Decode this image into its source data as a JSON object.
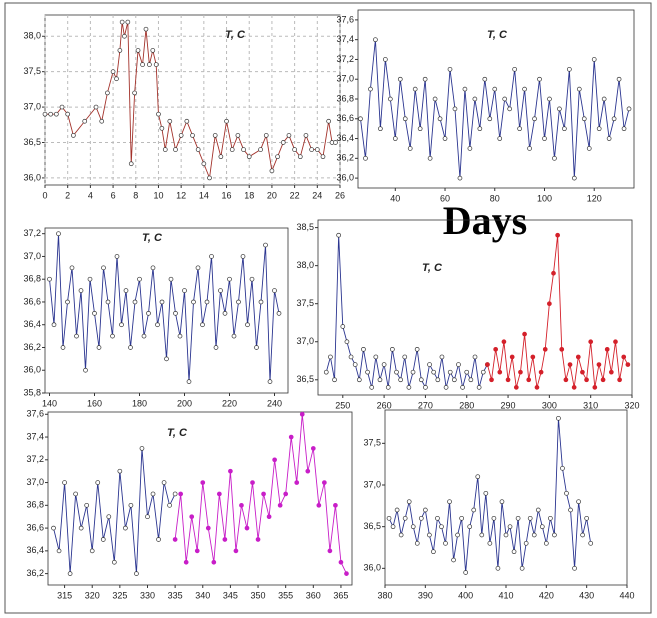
{
  "chart_data": [
    {
      "type": "line",
      "title": "T, C",
      "grid": true,
      "xlim": [
        0,
        26
      ],
      "xticks": [
        0,
        2,
        4,
        6,
        8,
        10,
        12,
        14,
        16,
        18,
        20,
        22,
        24,
        26
      ],
      "ylim": [
        35.9,
        38.3
      ],
      "yticks": [
        {
          "value": 36.0,
          "label": "36,0"
        },
        {
          "value": 36.5,
          "label": "36,5"
        },
        {
          "value": 37.0,
          "label": "37,0"
        },
        {
          "value": 37.5,
          "label": "37,5"
        },
        {
          "value": 38.0,
          "label": "38,0"
        }
      ],
      "series": [
        {
          "color": "#a3322b",
          "marker": "open",
          "x": [
            0,
            0.5,
            1,
            1.5,
            2,
            2.5,
            3.5,
            4.5,
            5,
            5.5,
            6,
            6.3,
            6.6,
            6.8,
            7,
            7.3,
            7.6,
            7.9,
            8.2,
            8.6,
            8.9,
            9.2,
            9.5,
            9.8,
            10,
            10.3,
            10.6,
            11,
            11.5,
            12,
            12.5,
            13,
            13.5,
            14,
            14.5,
            15,
            15.5,
            16,
            16.5,
            17,
            17.5,
            18,
            19,
            19.5,
            20,
            20.5,
            21,
            21.5,
            22,
            22.5,
            23,
            23.5,
            24,
            24.5,
            25,
            25.3,
            25.6
          ],
          "values": [
            36.9,
            36.9,
            36.9,
            37.0,
            36.9,
            36.6,
            36.8,
            37.0,
            36.8,
            37.2,
            37.5,
            37.4,
            37.8,
            38.2,
            38.0,
            38.2,
            36.2,
            37.2,
            37.8,
            37.6,
            38.1,
            37.6,
            37.8,
            37.6,
            36.9,
            36.7,
            36.4,
            36.8,
            36.4,
            36.6,
            36.8,
            36.6,
            36.4,
            36.2,
            36.0,
            36.6,
            36.3,
            36.8,
            36.4,
            36.6,
            36.4,
            36.3,
            36.4,
            36.6,
            36.1,
            36.3,
            36.5,
            36.6,
            36.4,
            36.3,
            36.6,
            36.4,
            36.4,
            36.3,
            36.8,
            36.5,
            36.5
          ]
        }
      ]
    },
    {
      "type": "line",
      "title": "T, C",
      "grid": false,
      "xlim": [
        25,
        136
      ],
      "xticks": [
        40,
        60,
        80,
        100,
        120
      ],
      "ylim": [
        35.9,
        37.7
      ],
      "yticks": [
        {
          "value": 36.0,
          "label": "36,0"
        },
        {
          "value": 36.2,
          "label": "36,2"
        },
        {
          "value": 36.4,
          "label": "36,4"
        },
        {
          "value": 36.6,
          "label": "36,6"
        },
        {
          "value": 36.8,
          "label": "36,8"
        },
        {
          "value": 37.0,
          "label": "37,0"
        },
        {
          "value": 37.2,
          "label": "37,2"
        },
        {
          "value": 37.4,
          "label": "37,4"
        },
        {
          "value": 37.6,
          "label": "37,6"
        }
      ],
      "series": [
        {
          "color": "#2b3590",
          "marker": "open",
          "x": [
            26,
            28,
            30,
            32,
            34,
            36,
            38,
            40,
            42,
            44,
            46,
            48,
            50,
            52,
            54,
            56,
            58,
            60,
            62,
            64,
            66,
            68,
            70,
            72,
            74,
            76,
            78,
            80,
            82,
            84,
            86,
            88,
            90,
            92,
            94,
            96,
            98,
            100,
            102,
            104,
            106,
            108,
            110,
            112,
            114,
            116,
            118,
            120,
            122,
            124,
            126,
            128,
            130,
            132,
            134
          ],
          "values": [
            36.6,
            36.2,
            36.9,
            37.4,
            36.5,
            37.2,
            36.8,
            36.4,
            37.0,
            36.6,
            36.3,
            36.9,
            36.5,
            37.0,
            36.2,
            36.8,
            36.6,
            36.4,
            37.1,
            36.7,
            36.0,
            36.9,
            36.3,
            36.8,
            36.5,
            37.0,
            36.6,
            36.9,
            36.4,
            36.8,
            36.7,
            37.1,
            36.5,
            36.9,
            36.3,
            36.6,
            37.0,
            36.4,
            36.8,
            36.2,
            36.7,
            36.5,
            37.1,
            36.0,
            36.9,
            36.6,
            36.3,
            37.2,
            36.5,
            36.8,
            36.4,
            36.6,
            37.0,
            36.5,
            36.7
          ]
        }
      ]
    },
    {
      "type": "line",
      "title": "T, C",
      "grid": false,
      "xlim": [
        138,
        246
      ],
      "xticks": [
        140,
        160,
        180,
        200,
        220,
        240
      ],
      "ylim": [
        35.8,
        37.25
      ],
      "yticks": [
        {
          "value": 35.8,
          "label": "35,8"
        },
        {
          "value": 36.0,
          "label": "36,0"
        },
        {
          "value": 36.2,
          "label": "36,2"
        },
        {
          "value": 36.4,
          "label": "36,4"
        },
        {
          "value": 36.6,
          "label": "36,6"
        },
        {
          "value": 36.8,
          "label": "36,8"
        },
        {
          "value": 37.0,
          "label": "37,0"
        },
        {
          "value": 37.2,
          "label": "37,2"
        }
      ],
      "series": [
        {
          "color": "#2b3590",
          "marker": "open",
          "x": [
            140,
            142,
            144,
            146,
            148,
            150,
            152,
            154,
            156,
            158,
            160,
            162,
            164,
            166,
            168,
            170,
            172,
            174,
            176,
            178,
            180,
            182,
            184,
            186,
            188,
            190,
            192,
            194,
            196,
            198,
            200,
            202,
            204,
            206,
            208,
            210,
            212,
            214,
            216,
            218,
            220,
            222,
            224,
            226,
            228,
            230,
            232,
            234,
            236,
            238,
            240,
            242
          ],
          "values": [
            36.8,
            36.4,
            37.2,
            36.2,
            36.6,
            36.9,
            36.3,
            36.7,
            36.0,
            36.8,
            36.5,
            36.2,
            36.9,
            36.6,
            36.3,
            37.0,
            36.4,
            36.7,
            36.2,
            36.6,
            36.8,
            36.3,
            36.5,
            36.9,
            36.4,
            36.6,
            36.1,
            36.8,
            36.5,
            36.3,
            36.7,
            35.9,
            36.6,
            36.9,
            36.4,
            36.6,
            37.0,
            36.2,
            36.7,
            36.5,
            36.8,
            36.3,
            36.6,
            37.0,
            36.4,
            36.8,
            36.2,
            36.6,
            37.1,
            35.9,
            36.7,
            36.5
          ]
        }
      ]
    },
    {
      "type": "line",
      "grid": false,
      "xlim": [
        244,
        320
      ],
      "xticks": [
        250,
        260,
        270,
        280,
        290,
        300,
        310,
        320
      ],
      "ylim": [
        36.3,
        38.6
      ],
      "yticks": [
        {
          "value": 36.5,
          "label": "36,5"
        },
        {
          "value": 37.0,
          "label": "37,0"
        },
        {
          "value": 37.5,
          "label": "37,5"
        },
        {
          "value": 38.0,
          "label": "38,0"
        },
        {
          "value": 38.5,
          "label": "38,5"
        }
      ],
      "title": "T, C",
      "series": [
        {
          "color": "#2b3590",
          "marker": "open",
          "x": [
            246,
            247,
            248,
            249,
            250,
            251,
            252,
            253,
            254,
            255,
            256,
            257,
            258,
            259,
            260,
            261,
            262,
            263,
            264,
            265,
            266,
            267,
            268,
            269,
            270,
            271,
            272,
            273,
            274,
            275,
            276,
            277,
            278,
            279,
            280,
            281,
            282,
            283,
            284,
            285
          ],
          "values": [
            36.6,
            36.8,
            36.5,
            38.4,
            37.2,
            37.0,
            36.8,
            36.7,
            36.5,
            36.9,
            36.6,
            36.4,
            36.8,
            36.5,
            36.7,
            36.4,
            36.9,
            36.6,
            36.5,
            36.8,
            36.4,
            36.6,
            36.9,
            36.5,
            36.4,
            36.7,
            36.6,
            36.5,
            36.8,
            36.4,
            36.6,
            36.5,
            36.7,
            36.4,
            36.6,
            36.5,
            36.8,
            36.4,
            36.6,
            36.7
          ]
        },
        {
          "color": "#d4202a",
          "marker": "filled",
          "x": [
            285,
            286,
            287,
            288,
            289,
            290,
            291,
            292,
            293,
            294,
            295,
            296,
            297,
            298,
            299,
            300,
            301,
            302,
            303,
            304,
            305,
            306,
            307,
            308,
            309,
            310,
            311,
            312,
            313,
            314,
            315,
            316,
            317,
            318,
            319
          ],
          "values": [
            36.7,
            36.5,
            36.9,
            36.6,
            37.0,
            36.5,
            36.8,
            36.4,
            36.6,
            37.1,
            36.5,
            36.8,
            36.4,
            36.6,
            36.9,
            37.5,
            37.9,
            38.4,
            36.9,
            36.5,
            36.7,
            36.4,
            36.8,
            36.6,
            36.5,
            37.0,
            36.4,
            36.7,
            36.5,
            36.9,
            36.6,
            37.0,
            36.5,
            36.8,
            36.7
          ]
        }
      ]
    },
    {
      "type": "line",
      "title": "T, C",
      "grid": false,
      "xlim": [
        312,
        367
      ],
      "xticks": [
        315,
        320,
        325,
        330,
        335,
        340,
        345,
        350,
        355,
        360,
        365
      ],
      "ylim": [
        36.1,
        37.62
      ],
      "yticks": [
        {
          "value": 36.2,
          "label": "36,2"
        },
        {
          "value": 36.4,
          "label": "36,4"
        },
        {
          "value": 36.6,
          "label": "36,6"
        },
        {
          "value": 36.8,
          "label": "36,8"
        },
        {
          "value": 37.0,
          "label": "37,0"
        },
        {
          "value": 37.2,
          "label": "37,2"
        },
        {
          "value": 37.4,
          "label": "37,4"
        },
        {
          "value": 37.6,
          "label": "37,6"
        }
      ],
      "series": [
        {
          "color": "#2b3590",
          "marker": "open",
          "x": [
            313,
            314,
            315,
            316,
            317,
            318,
            319,
            320,
            321,
            322,
            323,
            324,
            325,
            326,
            327,
            328,
            329,
            330,
            331,
            332,
            333,
            334,
            335
          ],
          "values": [
            36.6,
            36.4,
            37.0,
            36.2,
            36.9,
            36.6,
            36.8,
            36.4,
            37.0,
            36.5,
            36.7,
            36.3,
            37.1,
            36.6,
            36.8,
            36.2,
            37.3,
            36.7,
            36.9,
            36.5,
            37.0,
            36.8,
            36.9
          ]
        },
        {
          "color": "#c81ec8",
          "marker": "filled",
          "x": [
            335,
            336,
            337,
            338,
            339,
            340,
            341,
            342,
            343,
            344,
            345,
            346,
            347,
            348,
            349,
            350,
            351,
            352,
            353,
            354,
            355,
            356,
            357,
            358,
            359,
            360,
            361,
            362,
            363,
            364,
            365,
            366
          ],
          "values": [
            36.5,
            36.9,
            36.3,
            36.7,
            36.4,
            37.0,
            36.6,
            36.3,
            36.9,
            36.5,
            37.1,
            36.4,
            36.8,
            36.6,
            37.0,
            36.5,
            36.9,
            36.7,
            37.2,
            36.8,
            36.9,
            37.4,
            37.0,
            37.6,
            37.1,
            37.3,
            36.8,
            37.0,
            36.4,
            36.8,
            36.3,
            36.2
          ]
        }
      ]
    },
    {
      "type": "line",
      "grid": false,
      "xlim": [
        380,
        440
      ],
      "xticks": [
        380,
        390,
        400,
        410,
        420,
        430,
        440
      ],
      "ylim": [
        35.8,
        37.9
      ],
      "yticks": [
        {
          "value": 36.0,
          "label": "36,0"
        },
        {
          "value": 36.5,
          "label": "36,5"
        },
        {
          "value": 37.0,
          "label": "37,0"
        },
        {
          "value": 37.5,
          "label": "37,5"
        }
      ],
      "series": [
        {
          "color": "#2b3590",
          "marker": "open",
          "x": [
            381,
            382,
            383,
            384,
            385,
            386,
            387,
            388,
            389,
            390,
            391,
            392,
            393,
            394,
            395,
            396,
            397,
            398,
            399,
            400,
            401,
            402,
            403,
            404,
            405,
            406,
            407,
            408,
            409,
            410,
            411,
            412,
            413,
            414,
            415,
            416,
            417,
            418,
            419,
            420,
            421,
            422,
            423,
            424,
            425,
            426,
            427,
            428,
            429,
            430,
            431
          ],
          "values": [
            36.6,
            36.5,
            36.7,
            36.4,
            36.6,
            36.8,
            36.5,
            36.3,
            36.6,
            36.7,
            36.4,
            36.2,
            36.6,
            36.5,
            36.3,
            36.8,
            36.1,
            36.4,
            36.6,
            35.95,
            36.5,
            36.7,
            37.1,
            36.4,
            36.9,
            36.3,
            36.6,
            36.0,
            36.8,
            36.4,
            36.5,
            36.2,
            36.6,
            36.0,
            36.3,
            36.6,
            36.4,
            36.7,
            36.5,
            36.3,
            36.6,
            36.4,
            37.8,
            37.2,
            36.9,
            36.7,
            36.0,
            36.8,
            36.4,
            36.6,
            36.3
          ]
        }
      ]
    }
  ],
  "axis_label": "Days"
}
